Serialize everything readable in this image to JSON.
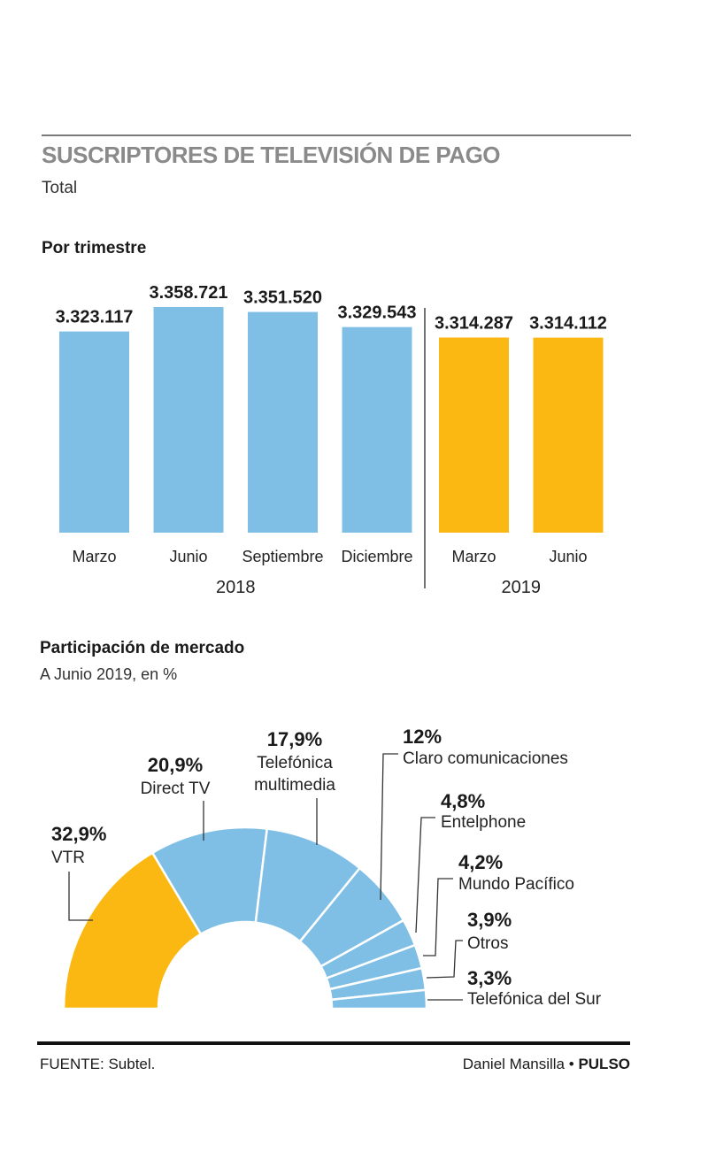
{
  "header": {
    "title": "SUSCRIPTORES DE TELEVISIÓN DE PAGO",
    "subtitle": "Total"
  },
  "bar_section": {
    "title": "Por trimestre"
  },
  "pie_section": {
    "title": "Participación de mercado",
    "subtitle": "A Junio 2019, en %"
  },
  "footer": {
    "source": "FUENTE: Subtel.",
    "author": "Daniel Mansilla",
    "separator": "•",
    "brand": "PULSO"
  },
  "colors": {
    "series_2018": "#7fbfe6",
    "series_2019": "#fbb812",
    "vtr": "#fbb812",
    "others": "#7fbfe6",
    "title_gray": "#8a8a8a"
  },
  "chart_data": [
    {
      "type": "bar",
      "categories": [
        "Marzo",
        "Junio",
        "Septiembre",
        "Diciembre",
        "Marzo",
        "Junio"
      ],
      "groups": [
        {
          "label": "2018",
          "start": 0,
          "end": 3,
          "color": "#7fbfe6"
        },
        {
          "label": "2019",
          "start": 4,
          "end": 5,
          "color": "#fbb812"
        }
      ],
      "values": [
        3323117,
        3358721,
        3351520,
        3329543,
        3314287,
        3314112
      ],
      "value_labels": [
        "3.323.117",
        "3.358.721",
        "3.351.520",
        "3.329.543",
        "3.314.287",
        "3.314.112"
      ],
      "title": "Por trimestre",
      "ylim": [
        3030000,
        3360000
      ],
      "grid": false
    },
    {
      "type": "pie",
      "shape": "half-donut",
      "labels": [
        "VTR",
        "Direct TV",
        "Telefónica multimedia",
        "Claro comunicaciones",
        "Entelphone",
        "Mundo Pacífico",
        "Otros",
        "Telefónica del Sur"
      ],
      "values": [
        32.9,
        20.9,
        17.9,
        12,
        4.8,
        4.2,
        3.9,
        3.3
      ],
      "value_labels": [
        "32,9%",
        "20,9%",
        "17,9%",
        "12%",
        "4,8%",
        "4,2%",
        "3,9%",
        "3,3%"
      ],
      "colors": [
        "#fbb812",
        "#7fbfe6",
        "#7fbfe6",
        "#7fbfe6",
        "#7fbfe6",
        "#7fbfe6",
        "#7fbfe6",
        "#7fbfe6"
      ],
      "title": "Participación de mercado",
      "subtitle": "A Junio 2019, en %"
    }
  ]
}
